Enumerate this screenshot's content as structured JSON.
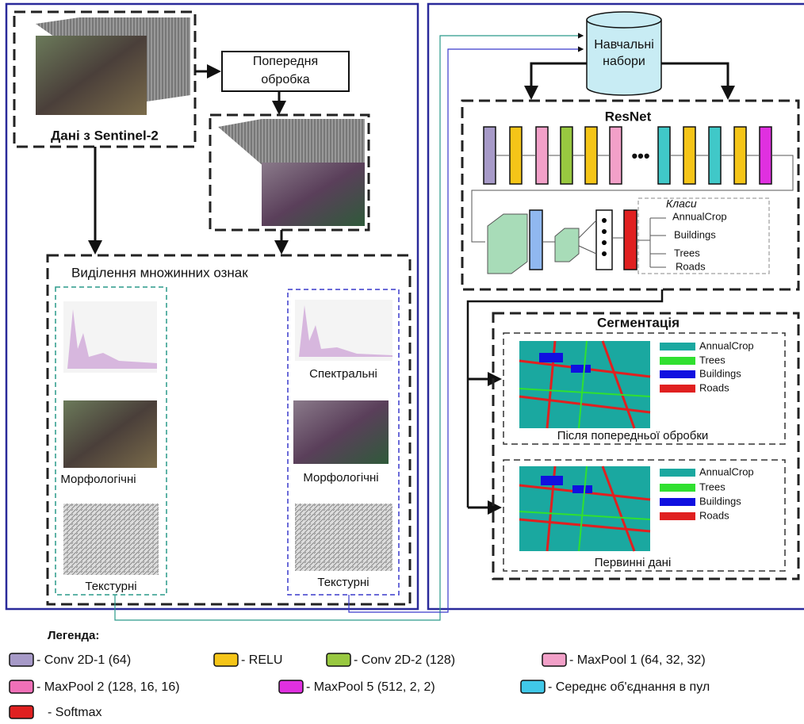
{
  "source": {
    "label": "Дані з Sentinel-2"
  },
  "preprocessing": {
    "lines": [
      "Попередня",
      "обробка"
    ]
  },
  "features": {
    "title": "Виділення множинних ознак",
    "left": {
      "morphological": "Морфологічні",
      "texture": "Текстурні"
    },
    "right": {
      "spectral": "Спектральні",
      "morphological": "Морфологічні",
      "texture": "Текстурні"
    }
  },
  "training": {
    "lines": [
      "Навчальні",
      "набори"
    ]
  },
  "resnet": {
    "title": "ResNet",
    "classes_title": "Класи",
    "classes": [
      "AnnualCrop",
      "Buildings",
      "Trees",
      "Roads"
    ]
  },
  "segmentation": {
    "title": "Сегментація",
    "panels": [
      {
        "caption": "Після попередньої обробки",
        "legend": [
          "AnnualCrop",
          "Trees",
          "Buildings",
          "Roads"
        ]
      },
      {
        "caption": "Первинні дані",
        "legend": [
          "AnnualCrop",
          "Trees",
          "Buildings",
          "Roads"
        ]
      }
    ]
  },
  "legend": {
    "title": "Легенда:",
    "items": [
      "- Conv 2D-1 (64)",
      "- RELU",
      "- Conv 2D-2 (128)",
      "- MaxPool 1 (64, 32, 32)",
      "- MaxPool 2 (128, 16, 16)",
      "- MaxPool 5 (512, 2, 2)",
      "- Середнє об'єднання в пул",
      "- Softmax"
    ]
  }
}
